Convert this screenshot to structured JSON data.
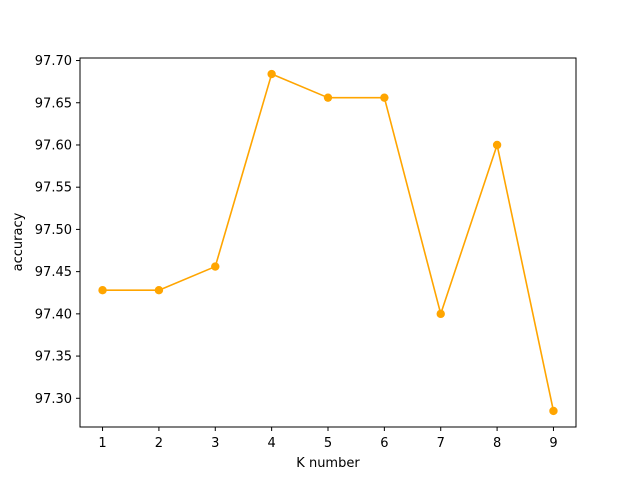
{
  "chart_data": {
    "type": "line",
    "title": "",
    "xlabel": "K number",
    "ylabel": "accuracy",
    "x": [
      1,
      2,
      3,
      4,
      5,
      6,
      7,
      8,
      9
    ],
    "series": [
      {
        "values": [
          97.428,
          97.428,
          97.456,
          97.684,
          97.656,
          97.656,
          97.4,
          97.6,
          97.285
        ],
        "color": "#ffa500",
        "marker": "circle"
      }
    ],
    "xlim": [
      0.6,
      9.4
    ],
    "ylim": [
      97.266,
      97.703
    ],
    "xticks": [
      "1",
      "2",
      "3",
      "4",
      "5",
      "6",
      "7",
      "8",
      "9"
    ],
    "xtick_values": [
      1,
      2,
      3,
      4,
      5,
      6,
      7,
      8,
      9
    ],
    "yticks": [
      "97.30",
      "97.35",
      "97.40",
      "97.45",
      "97.50",
      "97.55",
      "97.60",
      "97.65",
      "97.70"
    ],
    "ytick_values": [
      97.3,
      97.35,
      97.4,
      97.45,
      97.5,
      97.55,
      97.6,
      97.65,
      97.7
    ],
    "grid": false,
    "legend": "none"
  }
}
